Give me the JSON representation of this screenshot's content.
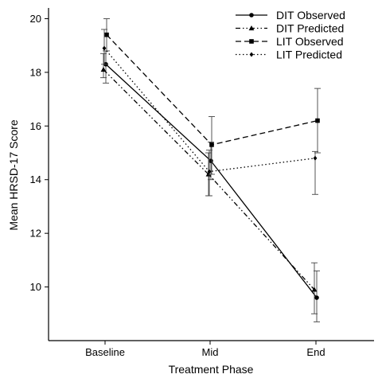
{
  "chart_data": {
    "type": "line",
    "title": "",
    "xlabel": "Treatment Phase",
    "ylabel": "Mean HRSD-17 Score",
    "categories": [
      "Baseline",
      "Mid",
      "End"
    ],
    "ylim": [
      8.0,
      20.4
    ],
    "yticks": [
      10,
      12,
      14,
      16,
      18,
      20
    ],
    "grid": false,
    "legend_position": "top-right",
    "series": [
      {
        "name": "DIT Observed",
        "line_style": "solid",
        "marker": "circle",
        "values": [
          18.3,
          14.7,
          9.6
        ],
        "error_low": [
          17.6,
          14.0,
          8.7
        ],
        "error_high": [
          18.8,
          15.4,
          10.6
        ]
      },
      {
        "name": "DIT Predicted",
        "line_style": "dash-dot-dot",
        "marker": "triangle",
        "values": [
          18.1,
          14.2,
          9.9
        ],
        "error_low": [
          17.8,
          13.4,
          9.0
        ],
        "error_high": [
          18.7,
          15.0,
          10.9
        ]
      },
      {
        "name": "LIT Observed",
        "line_style": "dashed",
        "marker": "square",
        "values": [
          19.4,
          15.3,
          16.2
        ],
        "error_low": [
          18.8,
          14.2,
          15.0
        ],
        "error_high": [
          20.0,
          16.35,
          17.4
        ]
      },
      {
        "name": "LIT Predicted",
        "line_style": "dotted",
        "marker": "diamond",
        "values": [
          18.9,
          14.3,
          14.8
        ],
        "error_low": [
          18.3,
          13.4,
          13.45
        ],
        "error_high": [
          19.6,
          15.1,
          15.05
        ]
      }
    ]
  }
}
